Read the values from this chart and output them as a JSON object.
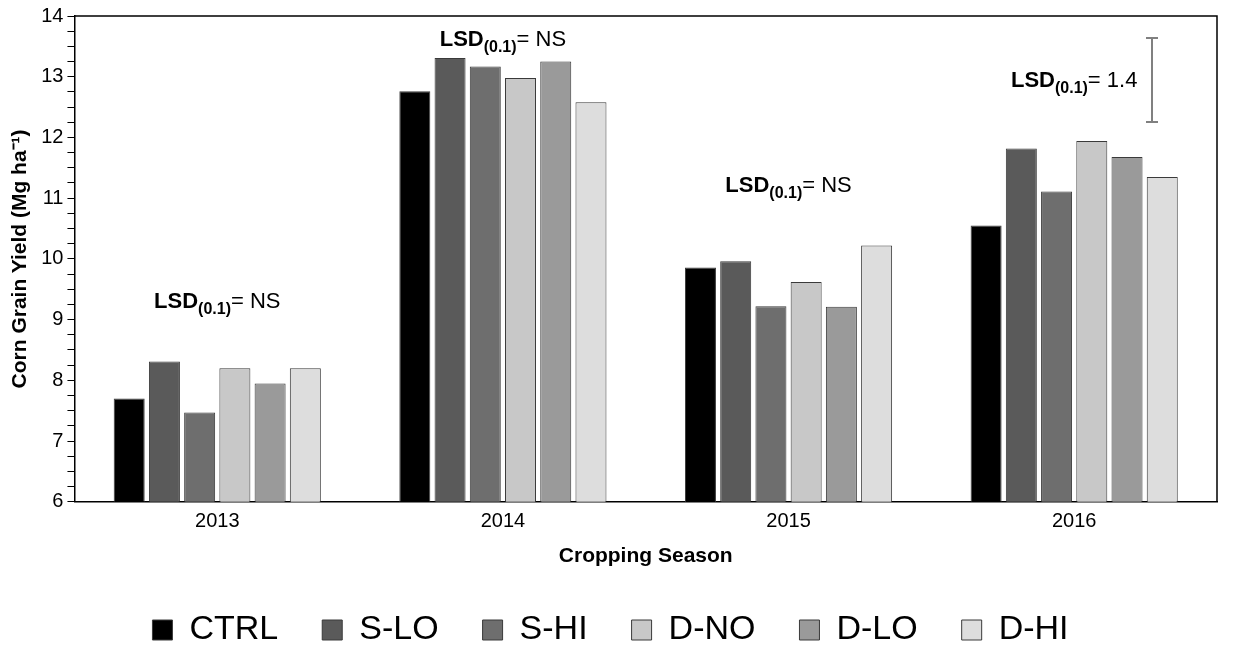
{
  "chart_data": {
    "type": "bar",
    "xlabel": "Cropping Season",
    "ylabel": "Corn Grain Yield (Mg ha⁻¹)",
    "categories": [
      "2013",
      "2014",
      "2015",
      "2016"
    ],
    "series": [
      {
        "name": "CTRL",
        "color": "#000000",
        "values": [
          7.7,
          12.76,
          9.86,
          10.55
        ]
      },
      {
        "name": "S-LO",
        "color": "#5a5a5a",
        "values": [
          8.31,
          13.31,
          9.96,
          11.82
        ]
      },
      {
        "name": "S-HI",
        "color": "#6e6e6e",
        "values": [
          7.47,
          13.17,
          9.22,
          11.11
        ]
      },
      {
        "name": "D-NO",
        "color": "#c8c8c8",
        "values": [
          8.2,
          12.98,
          9.62,
          11.94
        ]
      },
      {
        "name": "D-LO",
        "color": "#9a9a9a",
        "values": [
          7.95,
          13.25,
          9.21,
          11.68
        ]
      },
      {
        "name": "D-HI",
        "color": "#dddddd",
        "values": [
          8.2,
          12.58,
          10.22,
          11.35
        ]
      }
    ],
    "ylim": [
      6,
      14
    ],
    "yticks": [
      6,
      {
        "value": 6.25,
        "label": null
      },
      {
        "value": 6.5,
        "label": null
      },
      {
        "value": 6.75,
        "label": null
      },
      7,
      {
        "value": 7.25,
        "label": null
      },
      {
        "value": 7.5,
        "label": null
      },
      {
        "value": 7.75,
        "label": null
      },
      8,
      {
        "value": 8.25,
        "label": null
      },
      {
        "value": 8.5,
        "label": null
      },
      {
        "value": 8.75,
        "label": null
      },
      9,
      {
        "value": 9.25,
        "label": null
      },
      {
        "value": 9.5,
        "label": null
      },
      {
        "value": 9.75,
        "label": null
      },
      10,
      {
        "value": 10.25,
        "label": null
      },
      {
        "value": 10.5,
        "label": null
      },
      {
        "value": 10.75,
        "label": null
      },
      11,
      {
        "value": 11.25,
        "label": null
      },
      {
        "value": 11.5,
        "label": null
      },
      {
        "value": 11.75,
        "label": null
      },
      12,
      {
        "value": 12.25,
        "label": null
      },
      {
        "value": 12.5,
        "label": null
      },
      {
        "value": 12.75,
        "label": null
      },
      13,
      {
        "value": 13.25,
        "label": null
      },
      {
        "value": 13.5,
        "label": null
      },
      {
        "value": 13.75,
        "label": null
      },
      14
    ],
    "annotations": [
      "LSD$_{(0.1)}$= NS",
      "LSD$_{(0.1)}$= NS",
      "LSD$_{(0.1)}$= NS",
      "LSD$_{(0.1)}$= 1.4"
    ],
    "grid": false,
    "legend": "bottom"
  }
}
